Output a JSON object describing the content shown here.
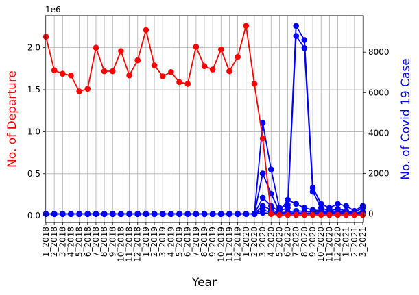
{
  "chart_data": {
    "type": "line",
    "xlabel": "Year",
    "ylabel_left": "No. of Departure",
    "ylabel_right": "No. of Covid 19 Case",
    "left_offset_text": "1e6",
    "left_axis_color": "#ff0000",
    "right_axis_color": "#0000ff",
    "grid": true,
    "left_ylim": [
      -80000,
      2380000
    ],
    "right_ylim": [
      -420,
      9800
    ],
    "left_yticks": [
      0,
      500000,
      1000000,
      1500000,
      2000000
    ],
    "left_ytick_labels": [
      "0.0",
      "0.5",
      "1.0",
      "1.5",
      "2.0"
    ],
    "right_yticks": [
      0,
      2000,
      4000,
      6000,
      8000
    ],
    "right_ytick_labels": [
      "0",
      "2000",
      "4000",
      "6000",
      "8000"
    ],
    "categories": [
      "1_2018",
      "2_2018",
      "3_2018",
      "4_2018",
      "5_2018",
      "6_2018",
      "7_2018",
      "8_2018",
      "9_2018",
      "10_2018",
      "11_2018",
      "12_2018",
      "1_2019",
      "2_2019",
      "3_2019",
      "4_2019",
      "5_2019",
      "6_2019",
      "7_2019",
      "8_2019",
      "9_2019",
      "10_2019",
      "11_2019",
      "12_2019",
      "1_2020",
      "2_2020",
      "3_2020",
      "4_2020",
      "5_2020",
      "6_2020",
      "7_2020",
      "8_2020",
      "9_2020",
      "10_2020",
      "11_2020",
      "12_2020",
      "1_2021",
      "2_2021",
      "3_2021"
    ],
    "series_left": [
      {
        "color": "#ff0000",
        "values": [
          2130000,
          1730000,
          1690000,
          1670000,
          1480000,
          1510000,
          2000000,
          1720000,
          1720000,
          1960000,
          1670000,
          1850000,
          2210000,
          1790000,
          1660000,
          1710000,
          1590000,
          1570000,
          2010000,
          1780000,
          1740000,
          1980000,
          1720000,
          1890000,
          2260000,
          1570000,
          920000,
          20000,
          10000,
          10000,
          10000,
          10000,
          10000,
          10000,
          10000,
          10000,
          10000,
          10000,
          10000
        ]
      }
    ],
    "series_right": [
      {
        "color": "#0000ff",
        "values": [
          0,
          0,
          0,
          0,
          0,
          0,
          0,
          0,
          0,
          0,
          0,
          0,
          0,
          0,
          0,
          0,
          0,
          0,
          0,
          0,
          0,
          0,
          0,
          0,
          0,
          0,
          4500,
          2200,
          300,
          450,
          9300,
          8600,
          1300,
          500,
          300,
          500,
          400,
          150,
          400
        ]
      },
      {
        "color": "#0000ff",
        "values": [
          0,
          0,
          0,
          0,
          0,
          0,
          0,
          0,
          0,
          0,
          0,
          0,
          0,
          0,
          0,
          0,
          0,
          0,
          0,
          0,
          0,
          0,
          0,
          0,
          0,
          0,
          2000,
          1000,
          150,
          300,
          8800,
          8200,
          1100,
          300,
          150,
          250,
          150,
          80,
          300
        ]
      },
      {
        "color": "#0000ff",
        "values": [
          0,
          0,
          0,
          0,
          0,
          0,
          0,
          0,
          0,
          0,
          0,
          0,
          0,
          0,
          0,
          0,
          0,
          0,
          0,
          0,
          0,
          0,
          0,
          0,
          0,
          0,
          800,
          400,
          100,
          700,
          500,
          300,
          200,
          150,
          120,
          120,
          100,
          50,
          100
        ]
      },
      {
        "color": "#0000ff",
        "values": [
          0,
          0,
          0,
          0,
          0,
          0,
          0,
          0,
          0,
          0,
          0,
          0,
          0,
          0,
          0,
          0,
          0,
          0,
          0,
          0,
          0,
          0,
          0,
          0,
          0,
          0,
          400,
          200,
          50,
          100,
          150,
          120,
          100,
          80,
          60,
          60,
          50,
          30,
          60
        ]
      },
      {
        "color": "#0000ff",
        "values": [
          0,
          0,
          0,
          0,
          0,
          0,
          0,
          0,
          0,
          0,
          0,
          0,
          0,
          0,
          0,
          0,
          0,
          0,
          0,
          0,
          0,
          0,
          0,
          0,
          0,
          0,
          200,
          80,
          20,
          40,
          60,
          40,
          30,
          30,
          20,
          20,
          20,
          10,
          20
        ]
      },
      {
        "color": "#0000ff",
        "values": [
          0,
          0,
          0,
          0,
          0,
          0,
          0,
          0,
          0,
          0,
          0,
          0,
          0,
          0,
          0,
          0,
          0,
          0,
          0,
          0,
          0,
          0,
          0,
          0,
          0,
          0,
          60,
          20,
          10,
          10,
          20,
          15,
          10,
          10,
          10,
          10,
          10,
          5,
          10
        ]
      }
    ]
  }
}
